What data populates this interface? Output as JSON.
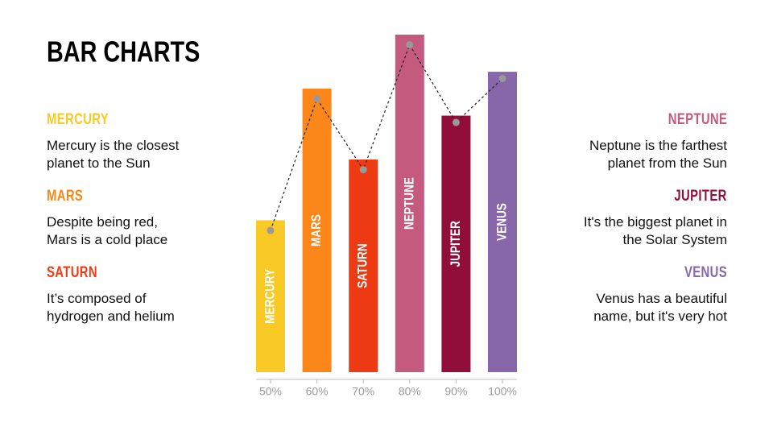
{
  "chart_data": {
    "type": "bar",
    "title": "BAR CHARTS",
    "categories": [
      "50%",
      "60%",
      "70%",
      "80%",
      "90%",
      "100%"
    ],
    "bar_labels": [
      "MERCURY",
      "MARS",
      "SATURN",
      "NEPTUNE",
      "JUPITER",
      "VENUS"
    ],
    "values": [
      45,
      84,
      63,
      100,
      76,
      89
    ],
    "colors": [
      "#f9c925",
      "#fb8619",
      "#ef3b14",
      "#c45a7d",
      "#910e3b",
      "#8766aa"
    ],
    "line": {
      "values": [
        42,
        81,
        60,
        97,
        74,
        87
      ],
      "color": "#999999"
    },
    "ylim": [
      0,
      100
    ]
  },
  "notes_left": [
    {
      "heading": "MERCURY",
      "color": "#f9c925",
      "lines": [
        "Mercury is the closest",
        "planet to the Sun"
      ]
    },
    {
      "heading": "MARS",
      "color": "#fb8619",
      "lines": [
        "Despite being red,",
        "Mars is a cold place"
      ]
    },
    {
      "heading": "SATURN",
      "color": "#ef3b14",
      "lines": [
        "It’s composed of",
        "hydrogen and helium"
      ]
    }
  ],
  "notes_right": [
    {
      "heading": "NEPTUNE",
      "color": "#c45a7d",
      "lines": [
        "Neptune is the farthest",
        "planet from the Sun"
      ]
    },
    {
      "heading": "JUPITER",
      "color": "#910e3b",
      "lines": [
        "It's the biggest planet in",
        "the Solar System"
      ]
    },
    {
      "heading": "VENUS",
      "color": "#8766aa",
      "lines": [
        "Venus has a beautiful",
        "name, but it's very hot"
      ]
    }
  ]
}
